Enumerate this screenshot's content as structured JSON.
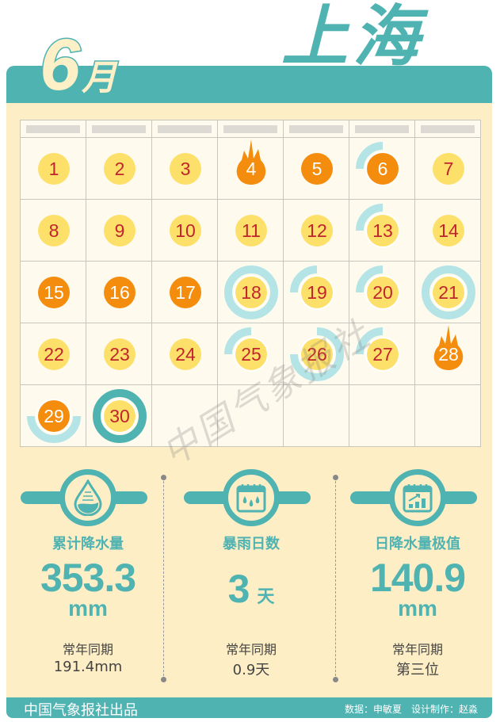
{
  "header": {
    "month_number": "6",
    "month_char": "月",
    "city": "上海"
  },
  "colors": {
    "teal": "#4fb3b2",
    "cream": "#fdeec6",
    "yellow_day": "#fde06a",
    "hot_day": "#f48d0e",
    "rain_ring": "#b4e4e6",
    "day_text": "#c0252d"
  },
  "calendar": {
    "weekday_headers": [
      "",
      "",
      "",
      "",
      "",
      "",
      ""
    ],
    "days": [
      {
        "day": "1",
        "type": "yellow",
        "rain": 0
      },
      {
        "day": "2",
        "type": "yellow",
        "rain": 0
      },
      {
        "day": "3",
        "type": "yellow",
        "rain": 0
      },
      {
        "day": "4",
        "type": "flame",
        "rain": 0
      },
      {
        "day": "5",
        "type": "orange",
        "rain": 0
      },
      {
        "day": "6",
        "type": "orange",
        "rain": 0.25
      },
      {
        "day": "7",
        "type": "yellow",
        "rain": 0
      },
      {
        "day": "8",
        "type": "yellow",
        "rain": 0
      },
      {
        "day": "9",
        "type": "yellow",
        "rain": 0
      },
      {
        "day": "10",
        "type": "yellow",
        "rain": 0
      },
      {
        "day": "11",
        "type": "yellow",
        "rain": 0
      },
      {
        "day": "12",
        "type": "yellow",
        "rain": 0
      },
      {
        "day": "13",
        "type": "yellow",
        "rain": 0.25
      },
      {
        "day": "14",
        "type": "yellow",
        "rain": 0
      },
      {
        "day": "15",
        "type": "orange",
        "rain": 0
      },
      {
        "day": "16",
        "type": "orange",
        "rain": 0
      },
      {
        "day": "17",
        "type": "orange",
        "rain": 0
      },
      {
        "day": "18",
        "type": "yellow",
        "rain": 1
      },
      {
        "day": "19",
        "type": "yellow",
        "rain": 0.25
      },
      {
        "day": "20",
        "type": "yellow",
        "rain": 0.25
      },
      {
        "day": "21",
        "type": "yellow",
        "rain": 1
      },
      {
        "day": "22",
        "type": "yellow",
        "rain": 0
      },
      {
        "day": "23",
        "type": "yellow",
        "rain": 0
      },
      {
        "day": "24",
        "type": "yellow",
        "rain": 0
      },
      {
        "day": "25",
        "type": "yellow",
        "rain": 0.25
      },
      {
        "day": "26",
        "type": "yellow",
        "rain": 0.75
      },
      {
        "day": "27",
        "type": "yellow",
        "rain": 0.25
      },
      {
        "day": "28",
        "type": "flame",
        "rain": 0
      },
      {
        "day": "29",
        "type": "orange",
        "rain": 0.5
      },
      {
        "day": "30",
        "type": "yellow",
        "rain": 1,
        "rainstorm": true
      }
    ]
  },
  "watermark": "中国气象报社",
  "stats": [
    {
      "icon": "water-drop-icon",
      "title": "累计降水量",
      "value": "353.3",
      "unit": "mm",
      "compare_label": "常年同期",
      "compare_value": "191.4mm"
    },
    {
      "icon": "rain-calendar-icon",
      "title": "暴雨日数",
      "value": "3",
      "unit": "天",
      "compare_label": "常年同期",
      "compare_value": "0.9天"
    },
    {
      "icon": "chart-calendar-icon",
      "title": "日降水量极值",
      "value": "140.9",
      "unit": "mm",
      "compare_label": "常年同期",
      "compare_value": "第三位"
    }
  ],
  "footer": {
    "publisher": "中国气象报社出品",
    "credits": "数据：申敏夏　设计制作：赵淼"
  }
}
